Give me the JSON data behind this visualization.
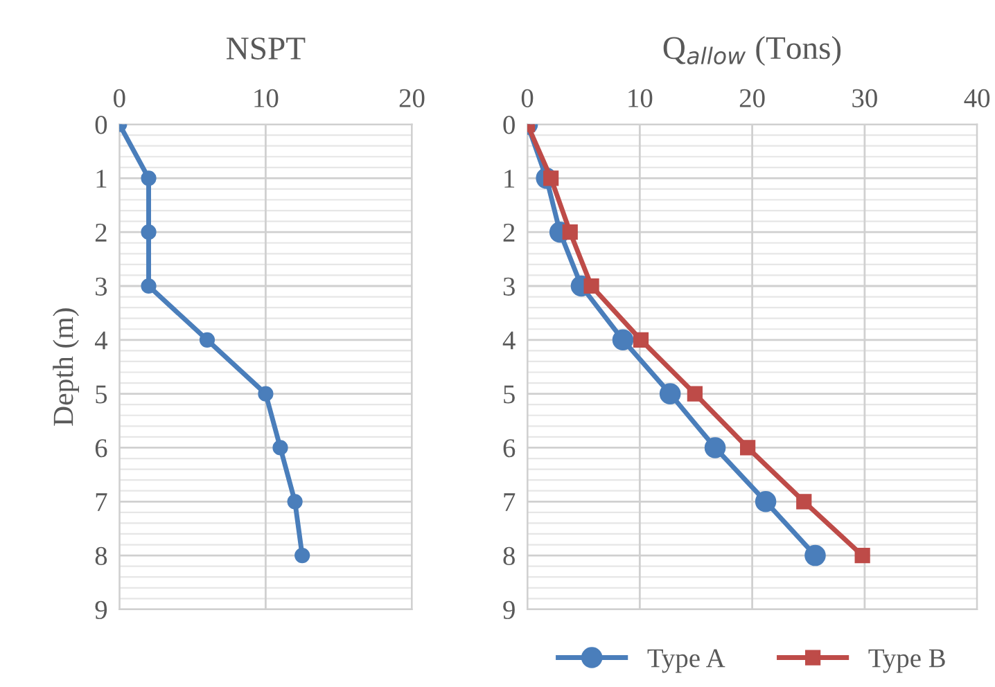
{
  "chart_data": [
    {
      "type": "line",
      "title": "NSPT",
      "ylabel": "Depth (m)",
      "xlim": [
        0,
        20
      ],
      "xticks": [
        0,
        10,
        20
      ],
      "ylim": [
        9,
        0
      ],
      "yticks": [
        0,
        1,
        2,
        3,
        4,
        5,
        6,
        7,
        8,
        9
      ],
      "grid": true,
      "legend": false,
      "series": [
        {
          "color": "#4a7ebb",
          "marker": "circle",
          "x": [
            0,
            2,
            2,
            2,
            6,
            10,
            11,
            12,
            12.5
          ],
          "values": [
            0,
            1,
            2,
            3,
            4,
            5,
            6,
            7,
            8
          ]
        }
      ]
    },
    {
      "type": "line",
      "title": "Q$_{allow}$ (Tons)",
      "xlim": [
        0,
        40
      ],
      "xticks": [
        0,
        10,
        20,
        30,
        40
      ],
      "ylim": [
        9,
        0
      ],
      "yticks": [
        0,
        1,
        2,
        3,
        4,
        5,
        6,
        7,
        8,
        9
      ],
      "grid": true,
      "legend": "bottom",
      "series": [
        {
          "name": "Type A",
          "color": "#4a7ebb",
          "marker": "circle",
          "x": [
            0,
            1.7,
            2.9,
            4.8,
            8.5,
            12.7,
            16.7,
            21.2,
            25.6
          ],
          "values": [
            0,
            1,
            2,
            3,
            4,
            5,
            6,
            7,
            8
          ]
        },
        {
          "name": "Type B",
          "color": "#be4b48",
          "marker": "square",
          "x": [
            0,
            2.1,
            3.8,
            5.7,
            10.1,
            14.9,
            19.6,
            24.6,
            29.8
          ],
          "values": [
            0,
            1,
            2,
            3,
            4,
            5,
            6,
            7,
            8
          ]
        }
      ]
    }
  ]
}
